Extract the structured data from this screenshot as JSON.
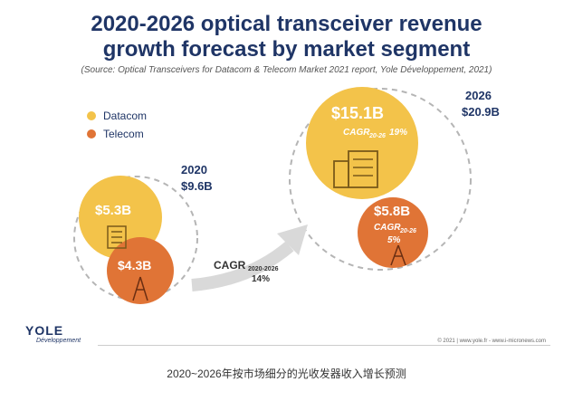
{
  "title_line1": "2020-2026 optical transceiver revenue",
  "title_line2": "growth forecast by market segment",
  "source": "(Source: Optical Transceivers for Datacom & Telecom Market 2021 report, Yole Développement, 2021)",
  "legend": [
    {
      "label": "Datacom",
      "color": "#f3c34a"
    },
    {
      "label": "Telecom",
      "color": "#e07436"
    }
  ],
  "year_2020": {
    "year": "2020",
    "total": "$9.6B"
  },
  "year_2026": {
    "year": "2026",
    "total": "$20.9B"
  },
  "cagr_total": {
    "label": "CAGR",
    "sub": "2020-2026",
    "value": "14%"
  },
  "bubbles": {
    "datacom_2020": "$5.3B",
    "telecom_2020": "$4.3B",
    "datacom_2026": "$15.1B",
    "datacom_cagr_label": "CAGR",
    "datacom_cagr_sub": "20-26",
    "datacom_cagr_value": "19%",
    "telecom_2026": "$5.8B",
    "telecom_cagr_label": "CAGR",
    "telecom_cagr_sub": "20-26",
    "telecom_cagr_value": "5%"
  },
  "chart_data": {
    "type": "bubble",
    "title": "2020-2026 optical transceiver revenue growth forecast by market segment",
    "unit": "$B",
    "categories": [
      "2020",
      "2026"
    ],
    "totals": [
      9.6,
      20.9
    ],
    "series": [
      {
        "name": "Datacom",
        "values": [
          5.3,
          15.1
        ],
        "cagr_2020_2026": "19%"
      },
      {
        "name": "Telecom",
        "values": [
          4.3,
          5.8
        ],
        "cagr_2020_2026": "5%"
      }
    ],
    "total_cagr_2020_2026": "14%"
  },
  "logo": {
    "main": "YOLE",
    "sub": "Développement"
  },
  "copyright": "© 2021 | www.yole.fr - www.i-micronews.com",
  "caption": "2020~2026年按市场细分的光收发器收入增长预测"
}
